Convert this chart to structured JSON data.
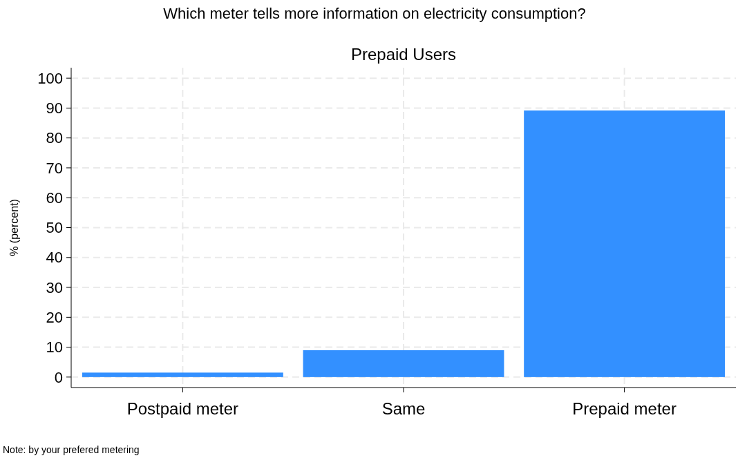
{
  "chart_data": {
    "type": "bar",
    "title": "Which meter tells more information on electricity consumption?",
    "subtitle": "Prepaid Users",
    "ylabel": "% (percent)",
    "annotations": [
      "Note: by your prefered metering"
    ],
    "categories": [
      "Postpaid meter",
      "Same",
      "Prepaid meter"
    ],
    "values": [
      1.5,
      9.0,
      89.2
    ],
    "color": "#3390ff",
    "ylim": [
      -3.5,
      103.5
    ],
    "yticks": [
      0,
      10,
      20,
      30,
      40,
      50,
      60,
      70,
      80,
      90,
      100
    ],
    "grid": true
  }
}
